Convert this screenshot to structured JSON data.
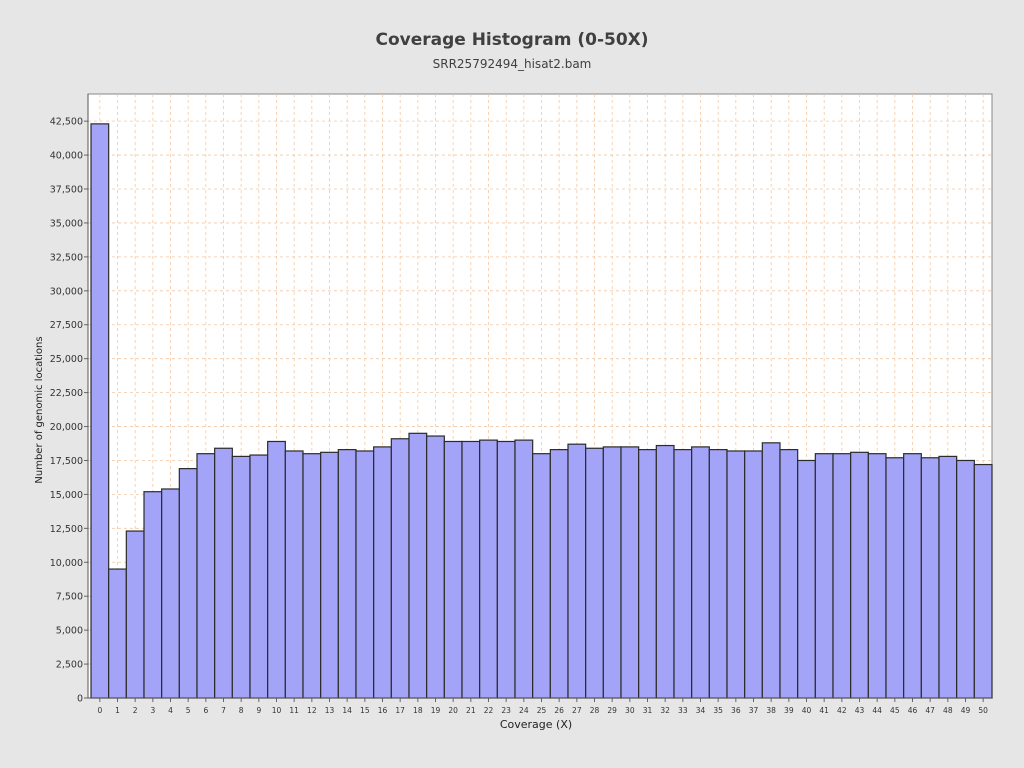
{
  "header": {
    "title": "Coverage Histogram (0-50X)",
    "subtitle": "SRR25792494_hisat2.bam"
  },
  "chart_data": {
    "type": "bar",
    "xlabel": "Coverage (X)",
    "ylabel": "Number of genomic locations",
    "ylim": [
      0,
      44500
    ],
    "yticks": [
      0,
      2500,
      5000,
      7500,
      10000,
      12500,
      15000,
      17500,
      20000,
      22500,
      25000,
      27500,
      30000,
      32500,
      35000,
      37500,
      40000,
      42500
    ],
    "ytick_labels": [
      "0",
      "2,500",
      "5,000",
      "7,500",
      "10,000",
      "12,500",
      "15,000",
      "17,500",
      "20,000",
      "22,500",
      "25,000",
      "27,500",
      "30,000",
      "32,500",
      "35,000",
      "37,500",
      "40,000",
      "42,500"
    ],
    "grid": true,
    "categories": [
      "0",
      "1",
      "2",
      "3",
      "4",
      "5",
      "6",
      "7",
      "8",
      "9",
      "10",
      "11",
      "12",
      "13",
      "14",
      "15",
      "16",
      "17",
      "18",
      "19",
      "20",
      "21",
      "22",
      "23",
      "24",
      "25",
      "26",
      "27",
      "28",
      "29",
      "30",
      "31",
      "32",
      "33",
      "34",
      "35",
      "36",
      "37",
      "38",
      "39",
      "40",
      "41",
      "42",
      "43",
      "44",
      "45",
      "46",
      "47",
      "48",
      "49",
      "50"
    ],
    "values": [
      42300,
      9500,
      12300,
      15200,
      15400,
      16900,
      18000,
      18400,
      17800,
      17900,
      18900,
      18200,
      18000,
      18100,
      18300,
      18200,
      18500,
      19100,
      19500,
      19300,
      18900,
      18900,
      19000,
      18900,
      19000,
      18000,
      18300,
      18700,
      18400,
      18500,
      18500,
      18300,
      18600,
      18300,
      18500,
      18300,
      18200,
      18200,
      18800,
      18300,
      17500,
      18000,
      18000,
      18100,
      18000,
      17700,
      18000,
      17700,
      17800,
      17500,
      17200
    ],
    "colors": {
      "bar_fill": "#a3a3f7",
      "bar_stroke": "#2b2b2b",
      "grid": "#f0c8a8",
      "plot_bg": "#ffffff",
      "page_bg": "#e6e6e6"
    }
  }
}
